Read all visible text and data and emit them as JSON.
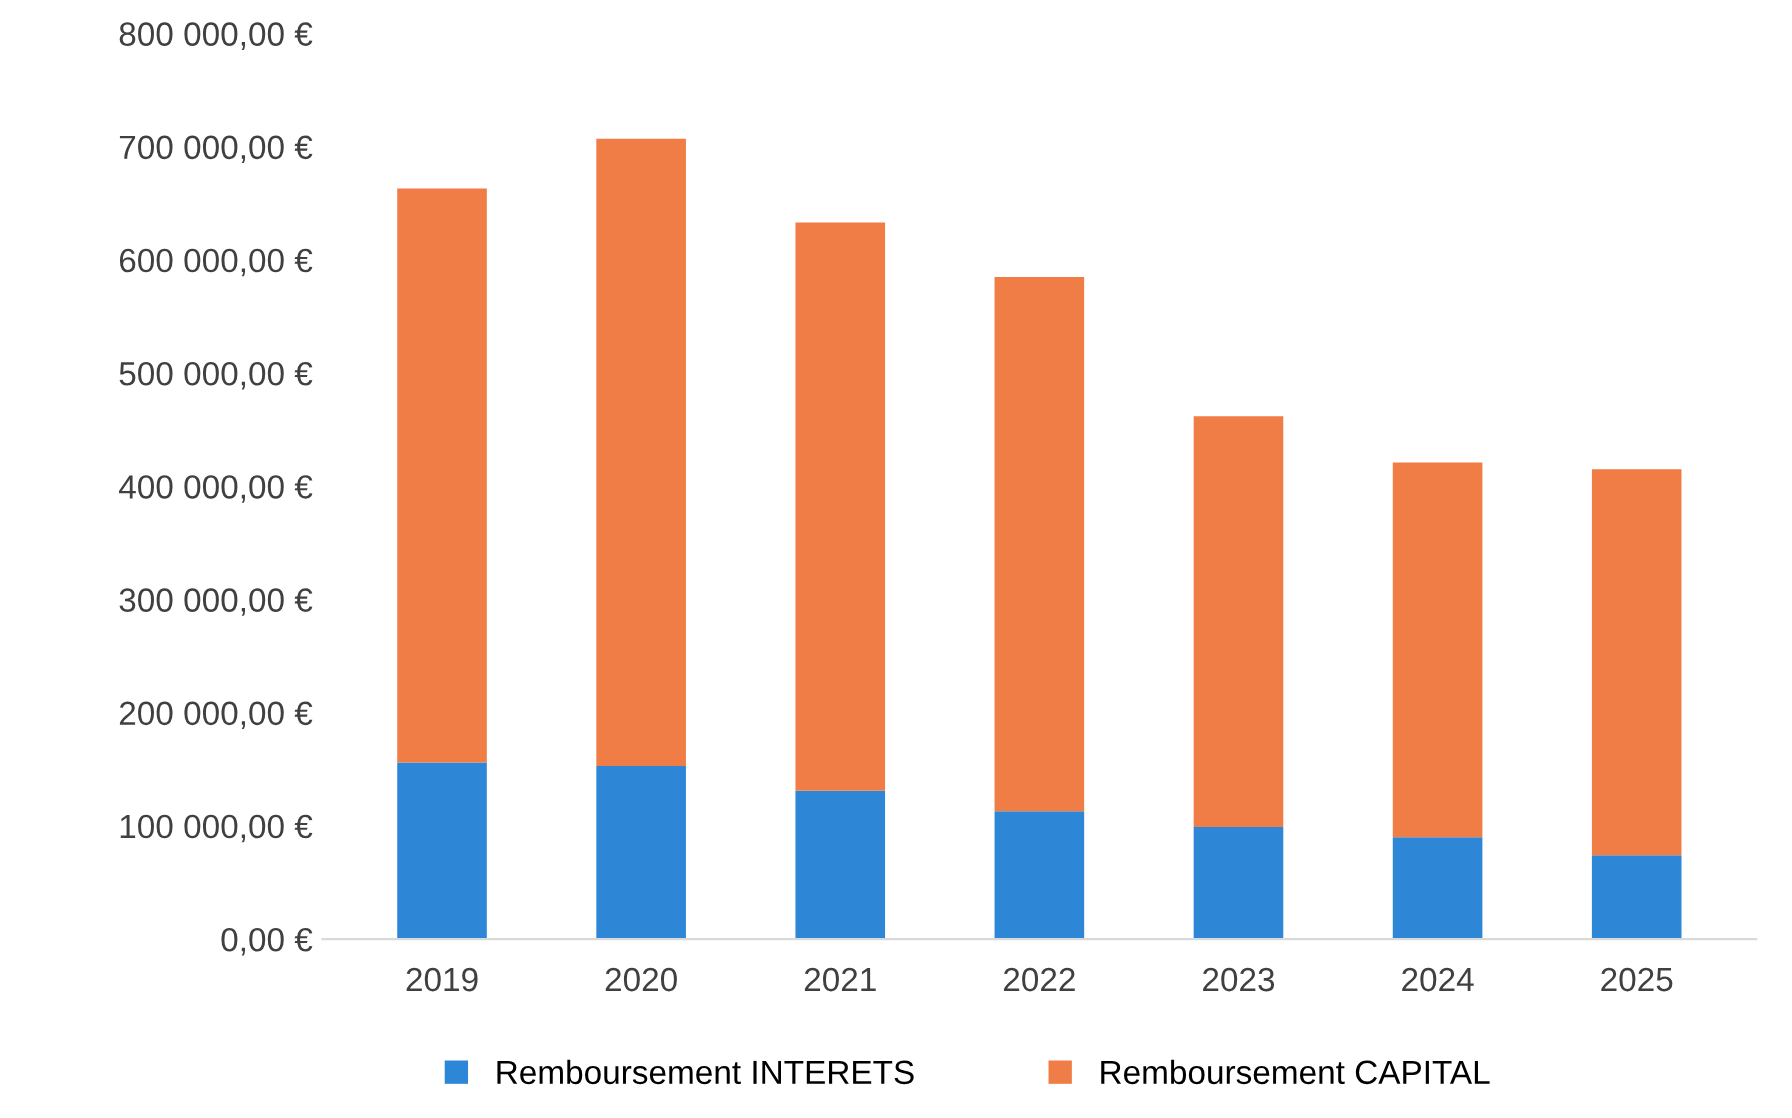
{
  "chart_data": {
    "type": "bar",
    "stacked": true,
    "categories": [
      "2019",
      "2020",
      "2021",
      "2022",
      "2023",
      "2024",
      "2025"
    ],
    "series": [
      {
        "name": "Remboursement INTERETS",
        "color": "#2e86d6",
        "values": [
          156000,
          153000,
          131000,
          113000,
          99000,
          90000,
          74000
        ]
      },
      {
        "name": "Remboursement CAPITAL",
        "color": "#ef7d45",
        "values": [
          507000,
          554000,
          502000,
          472000,
          363000,
          331000,
          341000
        ]
      }
    ],
    "ylim": [
      0,
      800000
    ],
    "yticks": [
      {
        "value": 0,
        "label": "0,00 €"
      },
      {
        "value": 100000,
        "label": "100 000,00 €"
      },
      {
        "value": 200000,
        "label": "200 000,00 €"
      },
      {
        "value": 300000,
        "label": "300 000,00 €"
      },
      {
        "value": 400000,
        "label": "400 000,00 €"
      },
      {
        "value": 500000,
        "label": "500 000,00 €"
      },
      {
        "value": 600000,
        "label": "600 000,00 €"
      },
      {
        "value": 700000,
        "label": "700 000,00 €"
      },
      {
        "value": 800000,
        "label": "800 000,00 €"
      }
    ],
    "grid": false,
    "legend": "bottom"
  }
}
